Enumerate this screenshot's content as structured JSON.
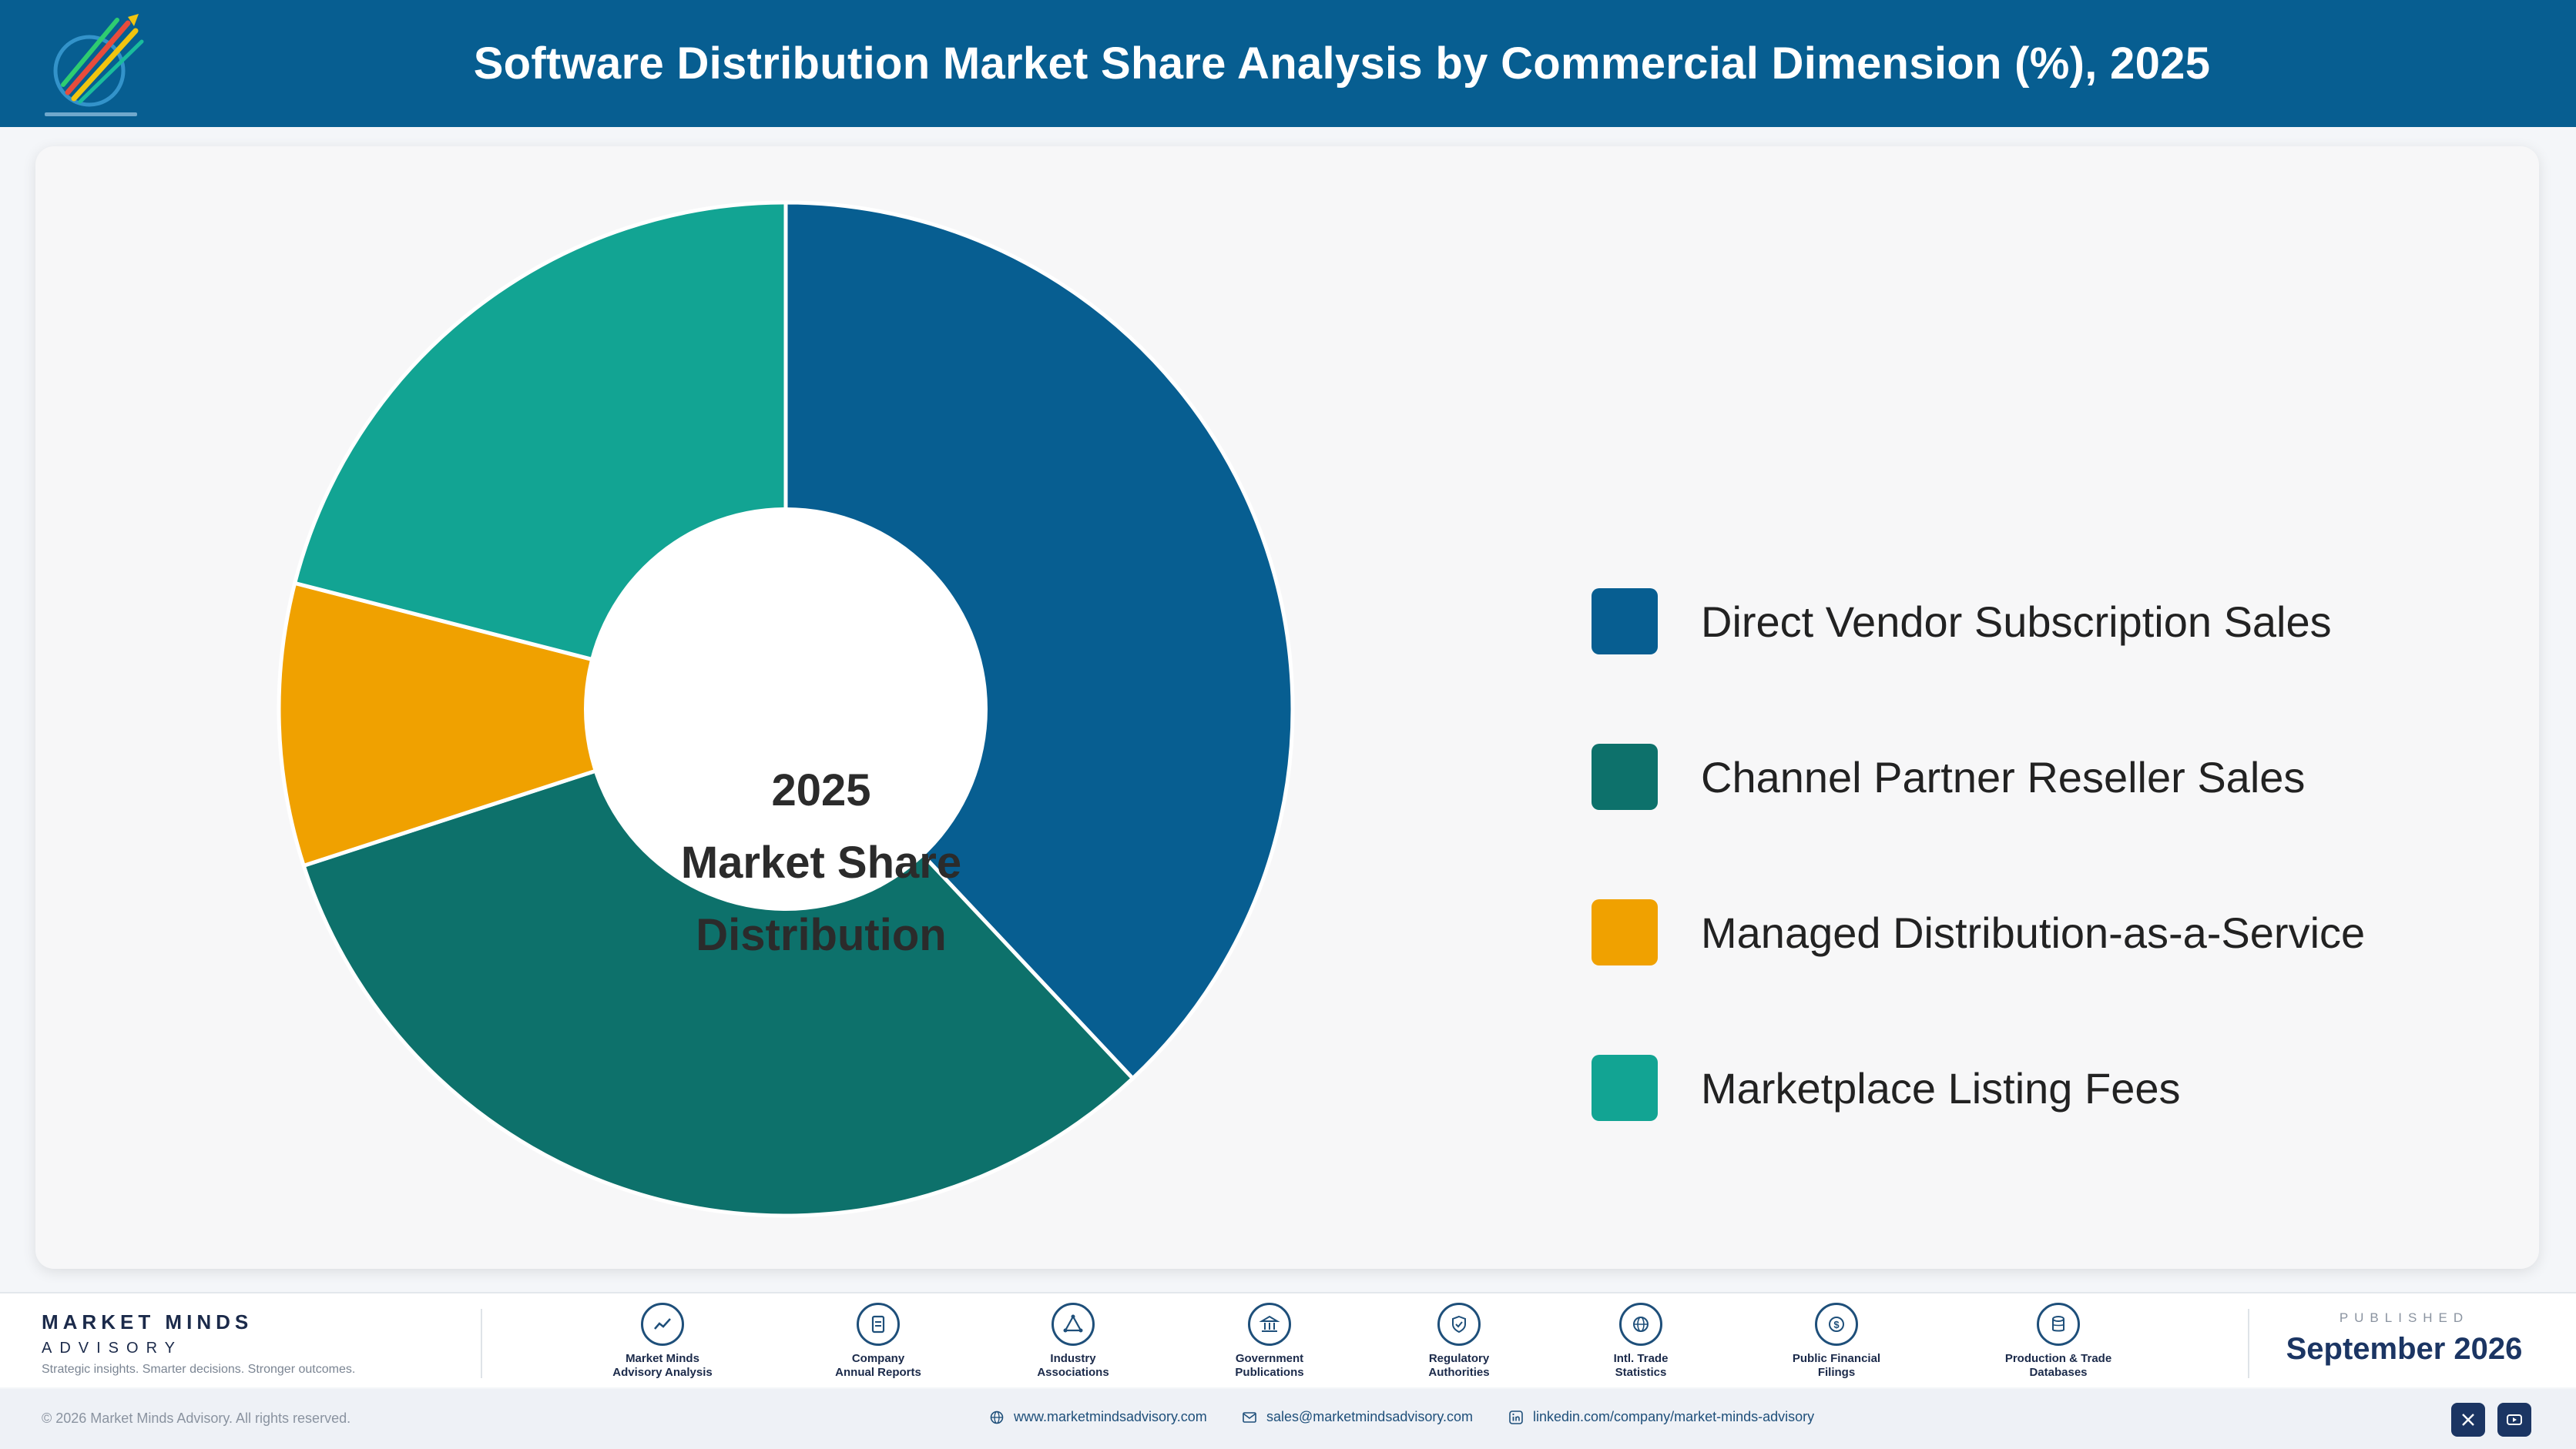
{
  "header": {
    "title": "Software Distribution Market Share Analysis by Commercial Dimension (%), 2025"
  },
  "colors": {
    "header_bg": "#075e91",
    "direct_vendor": "#075e91",
    "channel_partner": "#0d716b",
    "managed_daas": "#f0a100",
    "marketplace": "#12a493"
  },
  "chart_data": {
    "type": "pie",
    "subtype": "donut",
    "title": "",
    "center_label": [
      "2025",
      "Market Share",
      "Distribution"
    ],
    "categories": [
      "Direct Vendor Subscription Sales",
      "Channel Partner Reseller Sales",
      "Managed Distribution-as-a-Service",
      "Marketplace Listing Fees"
    ],
    "values": [
      38,
      32,
      9,
      21
    ],
    "unit": "%",
    "start_angle_deg": 0,
    "direction": "clockwise",
    "legend_position": "right"
  },
  "footer": {
    "brand_name": "MARKET MINDS",
    "brand_sub": "ADVISORY",
    "brand_tagline": "Strategic insights. Smarter decisions. Stronger outcomes.",
    "sources": [
      {
        "icon": "trend-chart-icon",
        "line1": "Market Minds",
        "line2": "Advisory Analysis"
      },
      {
        "icon": "document-icon",
        "line1": "Company",
        "line2": "Annual Reports"
      },
      {
        "icon": "network-icon",
        "line1": "Industry",
        "line2": "Associations"
      },
      {
        "icon": "government-building-icon",
        "line1": "Government",
        "line2": "Publications"
      },
      {
        "icon": "shield-check-icon",
        "line1": "Regulatory",
        "line2": "Authorities"
      },
      {
        "icon": "globe-icon",
        "line1": "Intl. Trade",
        "line2": "Statistics"
      },
      {
        "icon": "dollar-coin-icon",
        "line1": "Public Financial",
        "line2": "Filings"
      },
      {
        "icon": "database-icon",
        "line1": "Production & Trade",
        "line2": "Databases"
      }
    ],
    "published_kicker": "PUBLISHED",
    "published_date": "September 2026"
  },
  "bottom_bar": {
    "copyright": "© 2026 Market Minds Advisory. All rights reserved.",
    "website": "www.marketmindsadvisory.com",
    "email": "sales@marketmindsadvisory.com",
    "linkedin": "linkedin.com/company/market-minds-advisory"
  }
}
